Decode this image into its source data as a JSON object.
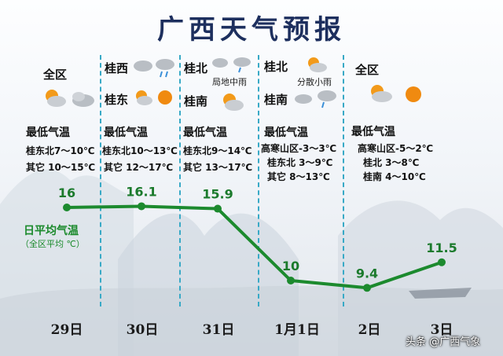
{
  "title": "广西天气预报",
  "days": [
    {
      "label": "29日"
    },
    {
      "label": "30日"
    },
    {
      "label": "31日"
    },
    {
      "label": "1月1日"
    },
    {
      "label": "2日"
    },
    {
      "label": "3日"
    }
  ],
  "col1": {
    "r1": "全区",
    "min_title": "最低气温",
    "l1": "桂东北7～10℃",
    "l2": "其它 10～15℃"
  },
  "col2": {
    "r1": "桂西",
    "r2": "桂东",
    "min_title": "最低气温",
    "l1": "桂东北10～13℃",
    "l2": "其它 12～17℃"
  },
  "col3": {
    "r1": "桂北",
    "r1_note": "局地中雨",
    "r2": "桂南",
    "min_title": "最低气温",
    "l1": "桂东北9～14℃",
    "l2": "其它 13～17℃"
  },
  "col4": {
    "r1": "桂北",
    "r1_note": "分散小雨",
    "r2": "桂南",
    "min_title": "最低气温",
    "l1": "高寒山区-3～3℃",
    "l2": "桂东北  3～9℃",
    "l3": "其它  8～13℃"
  },
  "col5": {
    "r1": "全区",
    "min_title": "最低气温",
    "l1": "高寒山区-5～2℃",
    "l2": "桂北    3～8℃",
    "l3": "桂南  4～10℃"
  },
  "legend": {
    "line1": "日平均气温",
    "line2": "（全区平均 ℃）"
  },
  "watermark": "头条 @广西气象",
  "chart_data": {
    "type": "line",
    "categories": [
      "29日",
      "30日",
      "31日",
      "1月1日",
      "2日",
      "3日"
    ],
    "values": [
      16,
      16.1,
      15.9,
      10,
      9.4,
      11.5
    ],
    "labels": [
      "16",
      "16.1",
      "15.9",
      "10",
      "9.4",
      "11.5"
    ],
    "line_color": "#1c8a2e"
  },
  "colors": {
    "title": "#1d2f5e",
    "divider": "#38a9c6",
    "line": "#1c8a2e"
  }
}
